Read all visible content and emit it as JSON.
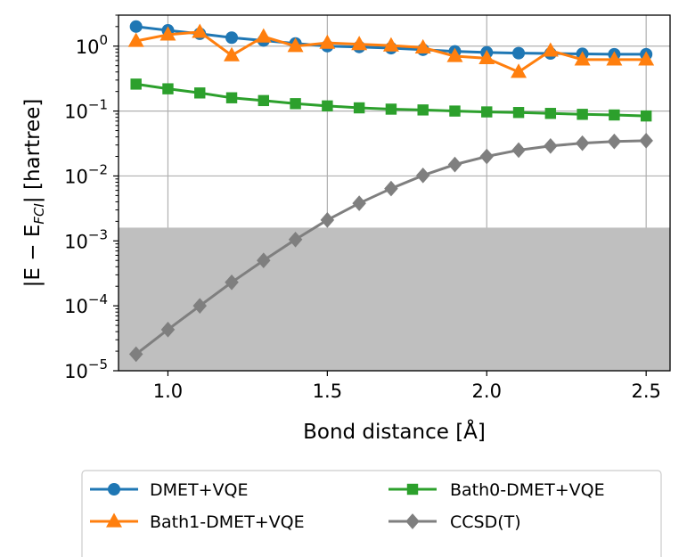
{
  "chart_data": {
    "type": "line",
    "xlabel": "Bond distance [Å]",
    "ylabel_parts": [
      "|E − E",
      "FCI",
      "| [hartree]"
    ],
    "yscale": "log",
    "xlim": [
      0.845,
      2.575
    ],
    "ylim": [
      1e-05,
      3
    ],
    "grid": true,
    "x_ticks": [
      1.0,
      1.5,
      2.0,
      2.5
    ],
    "x_tick_labels": [
      "1.0",
      "1.5",
      "2.0",
      "2.5"
    ],
    "y_ticks": [
      {
        "value": 1e-05,
        "base": "10",
        "exp": "−5"
      },
      {
        "value": 0.0001,
        "base": "10",
        "exp": "−4"
      },
      {
        "value": 0.001,
        "base": "10",
        "exp": "−3"
      },
      {
        "value": 0.01,
        "base": "10",
        "exp": "−2"
      },
      {
        "value": 0.1,
        "base": "10",
        "exp": "−1"
      },
      {
        "value": 1,
        "base": "10",
        "exp": "0"
      }
    ],
    "shaded_region": {
      "ymin": 1e-05,
      "ymax": 0.0016,
      "color": "#bfbfbf"
    },
    "x": [
      0.9,
      1.0,
      1.1,
      1.2,
      1.3,
      1.4,
      1.5,
      1.6,
      1.7,
      1.8,
      1.9,
      2.0,
      2.1,
      2.2,
      2.3,
      2.4,
      2.5
    ],
    "series": [
      {
        "name": "DMET+VQE",
        "marker": "circle",
        "color": "#1f77b4",
        "values": [
          2.0,
          1.75,
          1.55,
          1.35,
          1.22,
          1.1,
          1.0,
          0.97,
          0.93,
          0.88,
          0.83,
          0.8,
          0.78,
          0.77,
          0.76,
          0.75,
          0.75
        ]
      },
      {
        "name": "Bath1-DMET+VQE",
        "marker": "triangle",
        "color": "#ff7f0e",
        "values": [
          1.2,
          1.5,
          1.65,
          0.72,
          1.4,
          1.0,
          1.12,
          1.07,
          1.02,
          0.95,
          0.7,
          0.65,
          0.4,
          0.85,
          0.62,
          0.62,
          0.62
        ]
      },
      {
        "name": "Bath0-DMET+VQE",
        "marker": "square",
        "color": "#2ca02c",
        "values": [
          0.26,
          0.22,
          0.19,
          0.16,
          0.145,
          0.13,
          0.12,
          0.112,
          0.107,
          0.104,
          0.1,
          0.097,
          0.095,
          0.092,
          0.089,
          0.087,
          0.084
        ]
      },
      {
        "name": "CCSD(T)",
        "marker": "diamond",
        "color": "#7f7f7f",
        "values": [
          1.8e-05,
          4.3e-05,
          0.0001,
          0.00023,
          0.0005,
          0.00105,
          0.0021,
          0.0038,
          0.0064,
          0.0102,
          0.015,
          0.02,
          0.025,
          0.029,
          0.032,
          0.034,
          0.035
        ]
      }
    ],
    "legend": {
      "placement": "bottom-outside",
      "columns": 2
    }
  }
}
